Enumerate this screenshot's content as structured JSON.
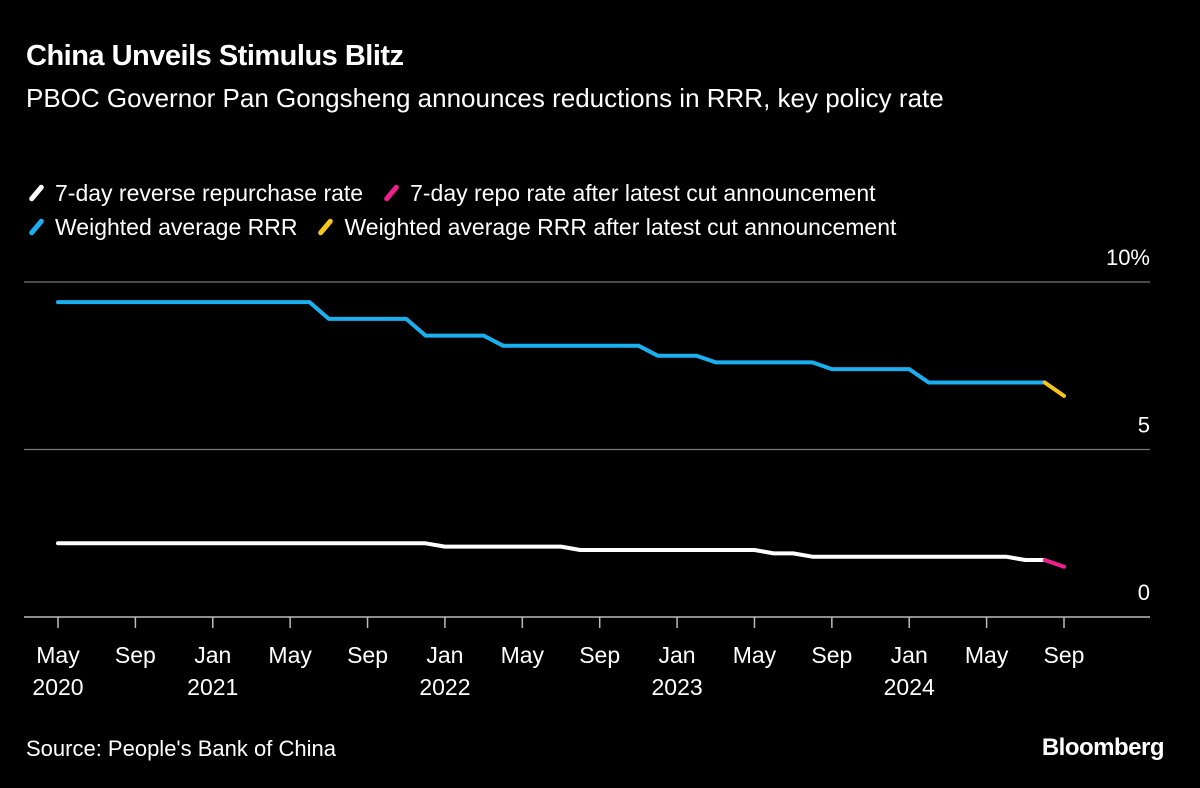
{
  "title": "China Unveils Stimulus Blitz",
  "subtitle": "PBOC Governor Pan Gongsheng announces reductions in RRR, key policy rate",
  "source": "Source: People's Bank of China",
  "logo": "Bloomberg",
  "chart_data": {
    "type": "line",
    "title": "China Unveils Stimulus Blitz",
    "subtitle": "PBOC Governor Pan Gongsheng announces reductions in RRR, key policy rate",
    "ylim": [
      0,
      10
    ],
    "y_ticks": [
      {
        "value": 10,
        "label": "10%"
      },
      {
        "value": 5,
        "label": "5"
      },
      {
        "value": 0,
        "label": "0"
      }
    ],
    "x_range": [
      "2020-05",
      "2024-09"
    ],
    "x_ticks": [
      {
        "date": "2020-05",
        "month": "May",
        "year": "2020"
      },
      {
        "date": "2020-09",
        "month": "Sep",
        "year": ""
      },
      {
        "date": "2021-01",
        "month": "Jan",
        "year": "2021"
      },
      {
        "date": "2021-05",
        "month": "May",
        "year": ""
      },
      {
        "date": "2021-09",
        "month": "Sep",
        "year": ""
      },
      {
        "date": "2022-01",
        "month": "Jan",
        "year": "2022"
      },
      {
        "date": "2022-05",
        "month": "May",
        "year": ""
      },
      {
        "date": "2022-09",
        "month": "Sep",
        "year": ""
      },
      {
        "date": "2023-01",
        "month": "Jan",
        "year": "2023"
      },
      {
        "date": "2023-05",
        "month": "May",
        "year": ""
      },
      {
        "date": "2023-09",
        "month": "Sep",
        "year": ""
      },
      {
        "date": "2024-01",
        "month": "Jan",
        "year": "2024"
      },
      {
        "date": "2024-05",
        "month": "May",
        "year": ""
      },
      {
        "date": "2024-09",
        "month": "Sep",
        "year": ""
      }
    ],
    "grid": true,
    "legend_placement": "top-left",
    "series": [
      {
        "name": "7-day reverse repurchase rate",
        "color": "#ffffff",
        "points": [
          [
            "2020-05",
            2.2
          ],
          [
            "2021-12",
            2.2
          ],
          [
            "2022-01",
            2.1
          ],
          [
            "2022-07",
            2.1
          ],
          [
            "2022-08",
            2.0
          ],
          [
            "2023-05",
            2.0
          ],
          [
            "2023-06",
            1.9
          ],
          [
            "2023-07",
            1.9
          ],
          [
            "2023-08",
            1.8
          ],
          [
            "2024-06",
            1.8
          ],
          [
            "2024-07",
            1.7
          ],
          [
            "2024-08",
            1.7
          ]
        ]
      },
      {
        "name": "7-day repo rate after latest cut announcement",
        "color": "#ee1f8c",
        "points": [
          [
            "2024-08",
            1.7
          ],
          [
            "2024-09",
            1.5
          ]
        ]
      },
      {
        "name": "Weighted average RRR",
        "color": "#1ab0f0",
        "points": [
          [
            "2020-05",
            9.4
          ],
          [
            "2021-06",
            9.4
          ],
          [
            "2021-07",
            8.9
          ],
          [
            "2021-11",
            8.9
          ],
          [
            "2021-12",
            8.4
          ],
          [
            "2022-03",
            8.4
          ],
          [
            "2022-04",
            8.1
          ],
          [
            "2022-11",
            8.1
          ],
          [
            "2022-12",
            7.8
          ],
          [
            "2023-02",
            7.8
          ],
          [
            "2023-03",
            7.6
          ],
          [
            "2023-08",
            7.6
          ],
          [
            "2023-09",
            7.4
          ],
          [
            "2024-01",
            7.4
          ],
          [
            "2024-02",
            7.0
          ],
          [
            "2024-08",
            7.0
          ]
        ]
      },
      {
        "name": "Weighted average RRR after latest cut announcement",
        "color": "#f5c518",
        "points": [
          [
            "2024-08",
            7.0
          ],
          [
            "2024-09",
            6.6
          ]
        ]
      }
    ]
  }
}
